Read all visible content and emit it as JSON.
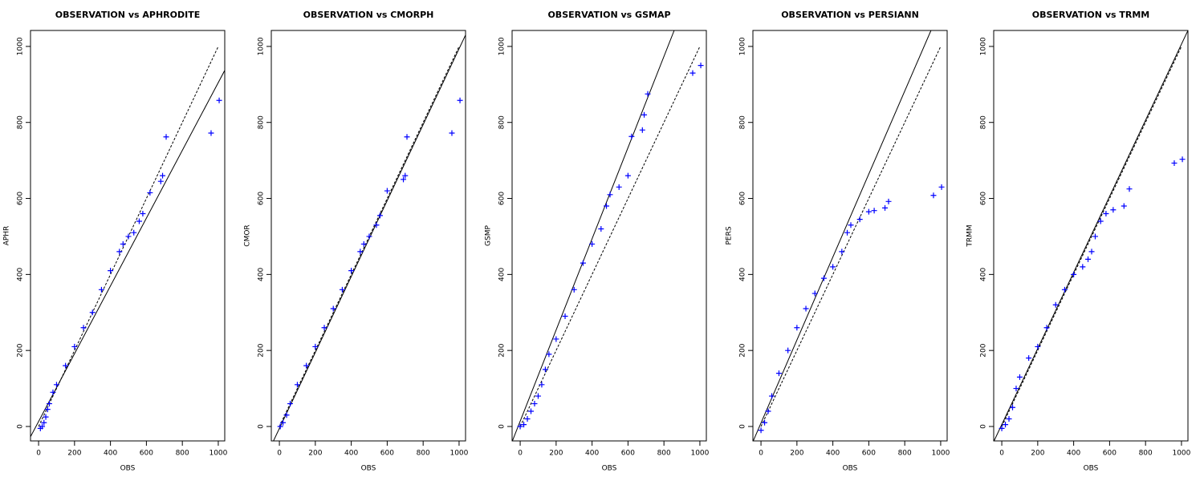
{
  "chart_data": [
    {
      "type": "scatter",
      "title": "OBSERVATION vs APHRODITE",
      "x_label": "OBS",
      "y_label": "APHR",
      "color": "#0000ff",
      "marker": "+",
      "x": [
        10,
        20,
        30,
        40,
        50,
        60,
        80,
        100,
        150,
        200,
        250,
        300,
        350,
        400,
        450,
        470,
        500,
        530,
        560,
        580,
        620,
        680,
        690,
        710,
        960,
        1005
      ],
      "values": [
        -5,
        0,
        10,
        25,
        45,
        60,
        90,
        110,
        160,
        210,
        260,
        300,
        360,
        410,
        460,
        480,
        500,
        510,
        540,
        560,
        615,
        645,
        660,
        762,
        772,
        858
      ],
      "lines": [
        {
          "x": [
            -45,
            1036
          ],
          "y": [
            -27,
            937
          ],
          "style": "solid"
        },
        {
          "x": [
            0,
            1000
          ],
          "y": [
            0,
            1000
          ],
          "style": "dashed"
        }
      ],
      "xlim": [
        -45,
        1036
      ],
      "ylim": [
        -38,
        1042
      ],
      "xticks": [
        0,
        200,
        400,
        600,
        800,
        1000
      ],
      "yticks": [
        0,
        200,
        400,
        600,
        800,
        1000
      ]
    },
    {
      "type": "scatter",
      "title": "OBSERVATION vs CMORPH",
      "x_label": "OBS",
      "y_label": "CMOR",
      "color": "#0000ff",
      "marker": "+",
      "x": [
        5,
        20,
        40,
        60,
        100,
        150,
        200,
        250,
        300,
        350,
        400,
        450,
        470,
        500,
        540,
        560,
        600,
        690,
        700,
        710,
        960,
        1005
      ],
      "values": [
        0,
        10,
        30,
        60,
        110,
        160,
        210,
        260,
        310,
        360,
        410,
        460,
        480,
        500,
        530,
        555,
        620,
        650,
        660,
        762,
        772,
        858
      ],
      "lines": [
        {
          "x": [
            -45,
            1036
          ],
          "y": [
            -50,
            1030
          ],
          "style": "solid"
        },
        {
          "x": [
            0,
            1000
          ],
          "y": [
            0,
            1000
          ],
          "style": "dashed"
        }
      ],
      "xlim": [
        -45,
        1036
      ],
      "ylim": [
        -38,
        1042
      ],
      "xticks": [
        0,
        200,
        400,
        600,
        800,
        1000
      ],
      "yticks": [
        0,
        200,
        400,
        600,
        800,
        1000
      ]
    },
    {
      "type": "scatter",
      "title": "OBSERVATION vs GSMAP",
      "x_label": "OBS",
      "y_label": "GSMP",
      "color": "#0000ff",
      "marker": "+",
      "x": [
        0,
        20,
        40,
        60,
        80,
        100,
        120,
        140,
        160,
        200,
        250,
        300,
        350,
        400,
        450,
        480,
        500,
        550,
        600,
        620,
        680,
        690,
        710,
        960,
        1005
      ],
      "values": [
        0,
        5,
        20,
        40,
        60,
        80,
        110,
        150,
        190,
        230,
        290,
        360,
        430,
        480,
        520,
        580,
        610,
        630,
        660,
        763,
        780,
        820,
        875,
        930,
        950
      ],
      "lines": [
        {
          "x": [
            -45,
            857
          ],
          "y": [
            -40,
            1042
          ],
          "style": "solid"
        },
        {
          "x": [
            0,
            1000
          ],
          "y": [
            0,
            1000
          ],
          "style": "dashed"
        }
      ],
      "xlim": [
        -45,
        1036
      ],
      "ylim": [
        -38,
        1042
      ],
      "xticks": [
        0,
        200,
        400,
        600,
        800,
        1000
      ],
      "yticks": [
        0,
        200,
        400,
        600,
        800,
        1000
      ]
    },
    {
      "type": "scatter",
      "title": "OBSERVATION vs PERSIANN",
      "x_label": "OBS",
      "y_label": "PERS",
      "color": "#0000ff",
      "marker": "+",
      "x": [
        0,
        20,
        40,
        60,
        100,
        150,
        200,
        250,
        300,
        350,
        400,
        450,
        480,
        500,
        550,
        600,
        630,
        690,
        710,
        960,
        1005
      ],
      "values": [
        -10,
        10,
        40,
        80,
        140,
        200,
        260,
        310,
        350,
        390,
        420,
        460,
        510,
        530,
        545,
        565,
        568,
        575,
        592,
        608,
        630
      ],
      "lines": [
        {
          "x": [
            -45,
            946
          ],
          "y": [
            -40,
            1042
          ],
          "style": "solid"
        },
        {
          "x": [
            0,
            1000
          ],
          "y": [
            0,
            1000
          ],
          "style": "dashed"
        }
      ],
      "xlim": [
        -45,
        1036
      ],
      "ylim": [
        -38,
        1042
      ],
      "xticks": [
        0,
        200,
        400,
        600,
        800,
        1000
      ],
      "yticks": [
        0,
        200,
        400,
        600,
        800,
        1000
      ]
    },
    {
      "type": "scatter",
      "title": "OBSERVATION vs TRMM",
      "x_label": "OBS",
      "y_label": "TRMM",
      "color": "#0000ff",
      "marker": "+",
      "x": [
        0,
        20,
        40,
        60,
        80,
        100,
        150,
        200,
        250,
        300,
        350,
        400,
        450,
        480,
        500,
        520,
        550,
        580,
        620,
        680,
        710,
        960,
        1005
      ],
      "values": [
        -5,
        5,
        20,
        50,
        100,
        130,
        180,
        210,
        260,
        320,
        360,
        400,
        420,
        440,
        460,
        500,
        540,
        560,
        570,
        580,
        625,
        693,
        703
      ],
      "lines": [
        {
          "x": [
            -45,
            1036
          ],
          "y": [
            -40,
            1042
          ],
          "style": "solid"
        },
        {
          "x": [
            0,
            1000
          ],
          "y": [
            0,
            1000
          ],
          "style": "dashed"
        }
      ],
      "xlim": [
        -45,
        1036
      ],
      "ylim": [
        -38,
        1042
      ],
      "xticks": [
        0,
        200,
        400,
        600,
        800,
        1000
      ],
      "yticks": [
        0,
        200,
        400,
        600,
        800,
        1000
      ]
    }
  ]
}
